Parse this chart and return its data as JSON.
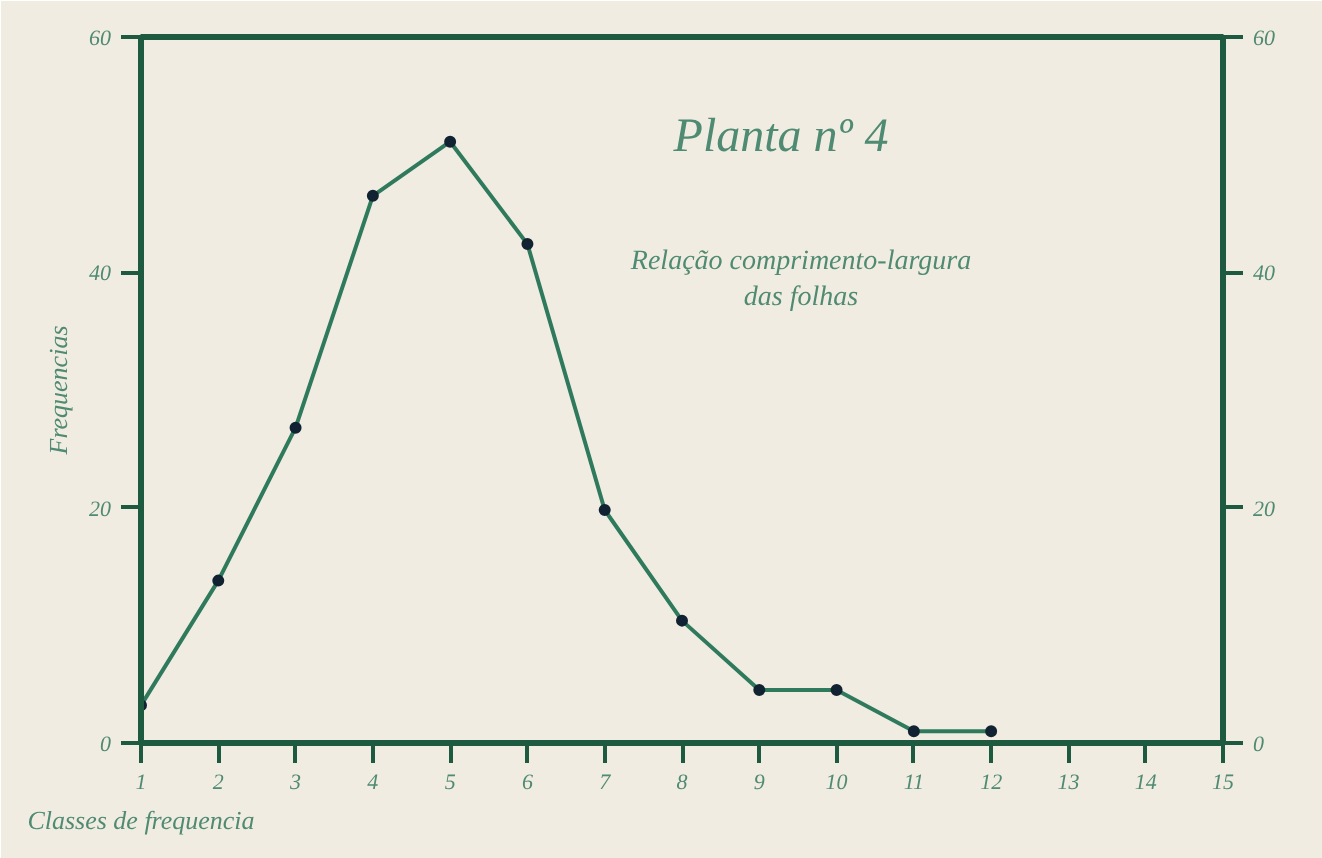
{
  "chart_data": {
    "type": "line",
    "title": "Planta nº 4",
    "subtitle": "Relação comprimento-largura das folhas",
    "xlabel": "Classes de frequencia",
    "ylabel": "Frequencias",
    "x": [
      1,
      2,
      3,
      4,
      5,
      6,
      7,
      8,
      9,
      10,
      11,
      12
    ],
    "series": [
      {
        "color": "#2f7a5c",
        "values": [
          3.2,
          13.8,
          26.8,
          46.5,
          51.1,
          42.4,
          19.8,
          10.4,
          4.5,
          4.5,
          1,
          1
        ]
      }
    ],
    "xlim": [
      1,
      15
    ],
    "xticks": [
      1,
      2,
      3,
      4,
      5,
      6,
      7,
      8,
      9,
      10,
      11,
      12,
      13,
      14,
      15
    ],
    "ylim": [
      0,
      60
    ],
    "yticks": [
      0,
      20,
      40,
      60
    ],
    "y2lim": [
      0,
      60
    ],
    "y2ticks": [
      0,
      20,
      40,
      60
    ],
    "marker": "circle",
    "line_style": "solid",
    "grid": false
  }
}
